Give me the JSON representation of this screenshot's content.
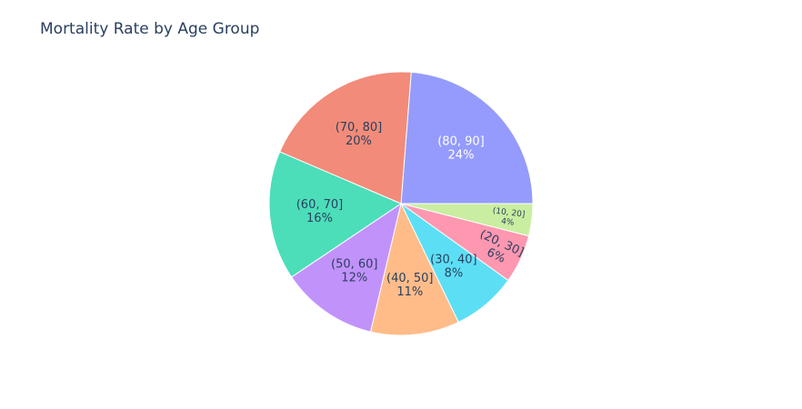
{
  "chart_data": {
    "type": "pie",
    "title": "Mortality Rate by Age Group",
    "slices": [
      {
        "label": "(80, 90]",
        "value": 24,
        "text": "24%",
        "color": "#949bfc"
      },
      {
        "label": "(10, 20]",
        "value": 4,
        "text": "4%",
        "color": "#caeea1"
      },
      {
        "label": "(20, 30]",
        "value": 6,
        "text": "6%",
        "color": "#fe97b0"
      },
      {
        "label": "(30, 40]",
        "value": 8,
        "text": "8%",
        "color": "#5cdff5"
      },
      {
        "label": "(40, 50]",
        "value": 11,
        "text": "11%",
        "color": "#ffbc89"
      },
      {
        "label": "(50, 60]",
        "value": 12,
        "text": "12%",
        "color": "#c292fb"
      },
      {
        "label": "(60, 70]",
        "value": 16,
        "text": "16%",
        "color": "#4bdeb9"
      },
      {
        "label": "(70, 80]",
        "value": 20,
        "text": "20%",
        "color": "#f28b79"
      }
    ],
    "direction": "clockwise",
    "start_angle": "3 o'clock, first slice drawn counter-clockwise above",
    "legend": "none"
  }
}
